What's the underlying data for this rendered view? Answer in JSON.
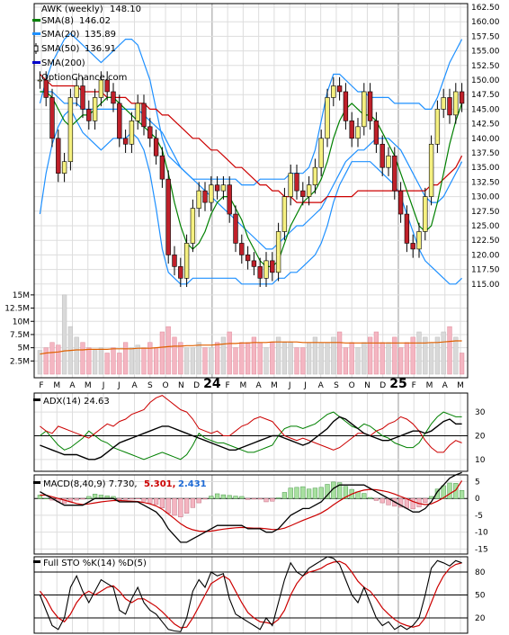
{
  "chart_data": {
    "type": "candlestick",
    "symbol": "AWK (weekly)",
    "last": 148.1,
    "watermark": "OptionChance.com",
    "x_labels": [
      "F",
      "M",
      "A",
      "M",
      "J",
      "J",
      "A",
      "S",
      "O",
      "N",
      "D",
      "24",
      "F",
      "M",
      "A",
      "M",
      "J",
      "J",
      "A",
      "S",
      "O",
      "N",
      "D",
      "25",
      "F",
      "M",
      "A",
      "M"
    ],
    "price_panel": {
      "ylim": [
        112.5,
        162.5
      ],
      "yticks": [
        115.0,
        117.5,
        120.0,
        122.5,
        125.0,
        127.5,
        130.0,
        132.5,
        135.0,
        137.5,
        140.0,
        142.5,
        145.0,
        147.5,
        150.0,
        152.5,
        155.0,
        157.5,
        160.0,
        162.5
      ],
      "legend": [
        {
          "label": "AWK (weekly)",
          "value": "148.10",
          "color": "#000000"
        },
        {
          "label": "SMA(8)",
          "value": "146.02",
          "color": "#008000"
        },
        {
          "label": "SMA(20)",
          "value": "135.89",
          "color": "#1e90ff"
        },
        {
          "label": "SMA(50)",
          "value": "136.91",
          "color": "#cc0000"
        },
        {
          "label": "SMA(200)",
          "value": "",
          "color": "#0000cc"
        }
      ],
      "close": [
        150,
        147,
        140,
        134,
        136,
        147,
        149,
        145,
        143,
        147,
        150,
        148,
        146,
        140,
        139,
        143,
        146,
        142,
        140,
        137,
        133,
        120,
        118,
        116,
        122,
        128,
        131,
        129,
        132,
        131,
        132,
        127,
        122,
        120,
        119,
        118,
        116,
        119,
        117,
        124,
        130,
        134,
        131,
        130,
        132,
        135,
        140,
        147,
        149,
        148,
        143,
        140,
        142,
        148,
        143,
        139,
        135,
        137,
        131,
        127,
        122,
        121,
        124,
        130,
        139,
        145,
        147,
        144,
        148,
        146
      ],
      "sma8": [
        148,
        148,
        147,
        145,
        143,
        142,
        143,
        144,
        144,
        145,
        146,
        147,
        147,
        146,
        145,
        144,
        143,
        142,
        141,
        140,
        138,
        134,
        129,
        125,
        122,
        121,
        122,
        124,
        127,
        129,
        130,
        130,
        128,
        126,
        123,
        121,
        119,
        118,
        118,
        119,
        122,
        125,
        127,
        129,
        130,
        131,
        133,
        136,
        140,
        143,
        145,
        146,
        145,
        144,
        144,
        143,
        141,
        139,
        137,
        134,
        131,
        128,
        125,
        124,
        125,
        129,
        134,
        139,
        143,
        146
      ],
      "sma20": [
        148,
        148,
        148,
        147,
        146,
        146,
        146,
        145,
        145,
        145,
        145,
        145,
        145,
        145,
        145,
        145,
        145,
        144,
        143,
        142,
        141,
        139,
        137,
        135,
        134,
        133,
        132,
        131,
        130,
        129,
        128,
        127,
        126,
        125,
        124,
        123,
        122,
        121,
        121,
        122,
        123,
        124,
        125,
        125,
        126,
        127,
        128,
        130,
        132,
        134,
        136,
        137,
        138,
        138,
        139,
        140,
        140,
        140,
        139,
        138,
        136,
        134,
        132,
        130,
        129,
        129,
        130,
        132,
        134,
        136
      ],
      "sma20_upper": [
        146,
        150,
        153,
        155,
        157,
        158,
        157,
        156,
        155,
        154,
        153,
        154,
        155,
        156,
        157,
        157,
        156,
        153,
        150,
        145,
        140,
        137,
        136,
        135,
        134,
        133,
        133,
        133,
        133,
        133,
        133,
        133,
        133,
        132,
        132,
        132,
        133,
        133,
        133,
        133,
        133,
        134,
        134,
        134,
        135,
        138,
        143,
        148,
        151,
        151,
        150,
        149,
        148,
        148,
        147,
        147,
        147,
        147,
        146,
        146,
        146,
        146,
        146,
        145,
        145,
        147,
        150,
        153,
        155,
        157
      ],
      "sma20_lower": [
        127,
        134,
        139,
        142,
        144,
        145,
        143,
        141,
        140,
        139,
        138,
        139,
        140,
        140,
        140,
        141,
        140,
        138,
        134,
        128,
        121,
        117,
        116,
        115,
        115,
        116,
        116,
        116,
        116,
        116,
        116,
        116,
        116,
        115,
        115,
        115,
        115,
        115,
        115,
        116,
        116,
        117,
        117,
        118,
        119,
        120,
        122,
        125,
        129,
        132,
        134,
        136,
        136,
        136,
        136,
        135,
        134,
        133,
        132,
        130,
        127,
        124,
        121,
        119,
        118,
        117,
        116,
        115,
        115,
        116
      ],
      "sma50": [
        151,
        150,
        149,
        149,
        149,
        149,
        149,
        148,
        148,
        148,
        148,
        147,
        147,
        147,
        147,
        146,
        146,
        146,
        145,
        145,
        144,
        144,
        143,
        142,
        141,
        140,
        140,
        139,
        138,
        138,
        137,
        136,
        135,
        135,
        134,
        133,
        132,
        132,
        131,
        131,
        130,
        130,
        129,
        129,
        129,
        129,
        129,
        130,
        130,
        130,
        130,
        130,
        131,
        131,
        131,
        131,
        131,
        131,
        131,
        131,
        131,
        131,
        131,
        131,
        132,
        132,
        133,
        134,
        135,
        137
      ],
      "volume_m": [
        4.5,
        5,
        6,
        5.5,
        15,
        9,
        7,
        6,
        5,
        4.5,
        5,
        4,
        5,
        4,
        6,
        5,
        5.5,
        5,
        6,
        5,
        8,
        9,
        7,
        6,
        5,
        5,
        6,
        5,
        5,
        6,
        7,
        8,
        5,
        6,
        6,
        7,
        6,
        5,
        6,
        7,
        6,
        6,
        5,
        5,
        6,
        7,
        6,
        6,
        7,
        8,
        5,
        6,
        5,
        6,
        7,
        8,
        6,
        6,
        7,
        5,
        6,
        7,
        8,
        7,
        6,
        7,
        8,
        9,
        7,
        4
      ],
      "volume_avg_m": [
        3.8,
        4.0,
        4.1,
        4.2,
        4.4,
        4.5,
        4.6,
        4.6,
        4.7,
        4.7,
        4.7,
        4.7,
        4.8,
        4.8,
        4.8,
        4.8,
        4.9,
        4.9,
        4.9,
        5.0,
        5.1,
        5.2,
        5.3,
        5.3,
        5.4,
        5.4,
        5.5,
        5.5,
        5.5,
        5.6,
        5.7,
        5.8,
        5.8,
        5.9,
        5.9,
        6.0,
        6.0,
        6.0,
        6.1,
        6.1,
        6.1,
        6.1,
        6.1,
        6.0,
        6.0,
        6.0,
        6.0,
        6.0,
        6.0,
        6.0,
        5.9,
        5.9,
        5.9,
        5.9,
        5.9,
        5.9,
        5.9,
        5.9,
        5.9,
        5.9,
        5.9,
        5.9,
        5.9,
        5.9,
        6.0,
        6.0,
        6.1,
        6.2,
        6.3,
        6.3
      ]
    },
    "volume_panel": {
      "ylim": [
        0,
        16
      ],
      "yticks": [
        2.5,
        5,
        7.5,
        10,
        12.5,
        15
      ],
      "ytick_labels": [
        "2.5M",
        "5M",
        "7.5M",
        "10M",
        "12.5M",
        "15M"
      ]
    },
    "adx_panel": {
      "label": "ADX(14) 24.63",
      "ylim": [
        5,
        38
      ],
      "yticks": [
        10,
        20,
        30
      ],
      "adx": [
        16,
        15,
        14,
        13,
        12,
        12,
        12,
        11,
        10,
        10,
        11,
        13,
        15,
        17,
        18,
        19,
        20,
        21,
        22,
        23,
        24,
        24,
        23,
        22,
        21,
        20,
        19,
        18,
        17,
        16,
        15,
        14,
        14,
        15,
        16,
        17,
        18,
        19,
        20,
        20,
        19,
        18,
        17,
        16,
        17,
        19,
        21,
        23,
        26,
        28,
        27,
        25,
        23,
        21,
        20,
        19,
        18,
        18,
        19,
        20,
        21,
        22,
        22,
        21,
        22,
        24,
        26,
        27,
        25,
        25
      ],
      "plus_di": [
        20,
        22,
        19,
        16,
        14,
        15,
        17,
        19,
        22,
        20,
        18,
        17,
        15,
        14,
        13,
        12,
        11,
        10,
        11,
        12,
        13,
        12,
        11,
        10,
        12,
        16,
        21,
        19,
        18,
        17,
        17,
        16,
        15,
        14,
        13,
        13,
        14,
        15,
        16,
        20,
        23,
        24,
        24,
        23,
        24,
        25,
        27,
        29,
        30,
        28,
        26,
        24,
        23,
        25,
        24,
        22,
        20,
        19,
        17,
        16,
        15,
        15,
        17,
        21,
        25,
        28,
        30,
        29,
        28,
        28
      ],
      "minus_di": [
        24,
        22,
        21,
        24,
        23,
        22,
        21,
        20,
        19,
        21,
        23,
        25,
        24,
        26,
        27,
        29,
        30,
        31,
        34,
        36,
        37,
        35,
        33,
        31,
        30,
        27,
        23,
        22,
        21,
        22,
        20,
        20,
        22,
        24,
        25,
        27,
        28,
        27,
        26,
        23,
        20,
        19,
        18,
        19,
        18,
        17,
        16,
        15,
        14,
        15,
        17,
        19,
        21,
        21,
        20,
        22,
        23,
        25,
        26,
        28,
        27,
        25,
        22,
        18,
        15,
        13,
        13,
        16,
        18,
        17
      ]
    },
    "macd_panel": {
      "label": "MACD(8,40,9) 7.730,",
      "signal_label": "5.301,",
      "hist_label": "2.431",
      "ylim": [
        -16.5,
        7
      ],
      "yticks": [
        -15,
        -10,
        -5,
        0,
        5
      ],
      "macd": [
        2,
        1,
        0,
        -1,
        -2,
        -2,
        -2,
        -2,
        -1,
        0,
        0,
        0,
        0,
        -1,
        -1,
        -1,
        -1,
        -2,
        -3,
        -4,
        -6,
        -9,
        -11,
        -13,
        -13,
        -12,
        -11,
        -10,
        -9,
        -8,
        -8,
        -8,
        -8,
        -8,
        -9,
        -9,
        -9,
        -10,
        -10,
        -9,
        -7,
        -5,
        -4,
        -3,
        -3,
        -2,
        -1,
        1,
        3,
        4,
        4,
        4,
        4,
        4,
        3,
        2,
        1,
        0,
        -1,
        -2,
        -3,
        -4,
        -4,
        -3,
        -1,
        2,
        4,
        6,
        7,
        7.7
      ],
      "signal": [
        1,
        1,
        0.5,
        0,
        -0.5,
        -1,
        -1.5,
        -1.8,
        -1.6,
        -1.3,
        -1,
        -0.8,
        -0.6,
        -0.6,
        -0.7,
        -0.8,
        -0.9,
        -1.2,
        -1.6,
        -2.2,
        -3.2,
        -4.6,
        -6,
        -7.5,
        -8.6,
        -9.3,
        -9.7,
        -9.8,
        -9.7,
        -9.4,
        -9.1,
        -8.9,
        -8.7,
        -8.6,
        -8.7,
        -8.8,
        -8.8,
        -9,
        -9.2,
        -9.2,
        -8.8,
        -8.1,
        -7.3,
        -6.5,
        -5.8,
        -5.1,
        -4.3,
        -3.2,
        -1.9,
        -0.7,
        0.4,
        1.3,
        2,
        2.5,
        2.7,
        2.6,
        2.3,
        1.9,
        1.3,
        0.6,
        -0.1,
        -0.9,
        -1.5,
        -1.8,
        -1.6,
        -0.8,
        0.2,
        1.4,
        2.5,
        5.3
      ]
    },
    "sto_panel": {
      "label": "Full STO %K(14) %D(5)",
      "ylim": [
        0,
        100
      ],
      "yticks": [
        20,
        50,
        80
      ],
      "k": [
        50,
        30,
        10,
        5,
        20,
        60,
        75,
        55,
        40,
        55,
        70,
        65,
        60,
        30,
        25,
        45,
        60,
        40,
        30,
        25,
        15,
        5,
        3,
        2,
        20,
        55,
        70,
        60,
        80,
        75,
        78,
        45,
        25,
        20,
        15,
        10,
        5,
        20,
        10,
        40,
        70,
        92,
        80,
        75,
        85,
        90,
        95,
        100,
        98,
        90,
        70,
        50,
        40,
        60,
        40,
        20,
        10,
        15,
        5,
        10,
        5,
        10,
        20,
        50,
        85,
        95,
        92,
        88,
        95,
        92
      ],
      "d": [
        55,
        45,
        30,
        20,
        15,
        25,
        40,
        50,
        55,
        50,
        55,
        60,
        62,
        55,
        45,
        40,
        45,
        45,
        40,
        35,
        28,
        20,
        12,
        7,
        8,
        20,
        35,
        50,
        65,
        70,
        75,
        70,
        55,
        40,
        27,
        20,
        15,
        14,
        12,
        18,
        30,
        50,
        65,
        75,
        80,
        82,
        85,
        90,
        93,
        94,
        90,
        80,
        68,
        60,
        55,
        45,
        33,
        25,
        18,
        13,
        10,
        8,
        10,
        20,
        40,
        60,
        75,
        85,
        90,
        92
      ]
    }
  }
}
